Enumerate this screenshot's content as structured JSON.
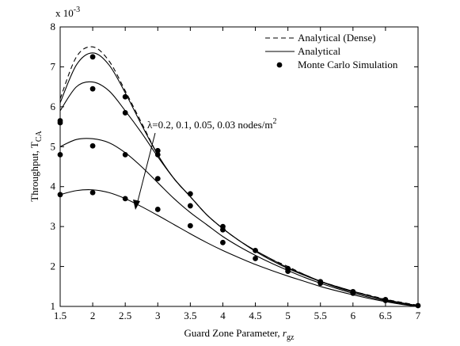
{
  "chart_data": {
    "type": "line",
    "title": "",
    "xlabel": "Guard Zone Parameter, ",
    "xlabel_var": "r",
    "xlabel_sub": "gz",
    "ylabel": "Throughput, T",
    "ylabel_sub": "CA",
    "exponent_label": "x 10",
    "exponent_power": "-3",
    "xlim": [
      1.5,
      7
    ],
    "ylim": [
      1,
      8
    ],
    "xticks": [
      1.5,
      2,
      2.5,
      3,
      3.5,
      4,
      4.5,
      5,
      5.5,
      6,
      6.5,
      7
    ],
    "yticks": [
      1,
      2,
      3,
      4,
      5,
      6,
      7,
      8
    ],
    "grid": false,
    "legend_position": "top-right",
    "legend": [
      {
        "label": "Analytical (Dense)",
        "style": "dashed"
      },
      {
        "label": "Analytical",
        "style": "solid"
      },
      {
        "label": "Monte Carlo Simulation",
        "style": "marker"
      }
    ],
    "annotation": {
      "text": "λ=0.2, 0.1, 0.05, 0.03 nodes/m",
      "sup": "2"
    },
    "x": [
      1.5,
      1.75,
      2,
      2.25,
      2.5,
      2.75,
      3,
      3.25,
      3.5,
      3.75,
      4,
      4.25,
      4.5,
      4.75,
      5,
      5.25,
      5.5,
      5.75,
      6,
      6.25,
      6.5,
      6.75,
      7
    ],
    "dense_series": {
      "name": "Analytical (Dense)",
      "values": [
        6.2,
        7.25,
        7.5,
        7.15,
        6.4,
        5.6,
        4.8,
        4.2,
        3.75,
        3.3,
        2.95,
        2.65,
        2.4,
        2.18,
        2.0,
        1.8,
        1.63,
        1.5,
        1.38,
        1.28,
        1.18,
        1.1,
        1.03
      ]
    },
    "series": [
      {
        "name": "λ=0.2",
        "values": [
          6.1,
          7.05,
          7.35,
          7.05,
          6.35,
          5.55,
          4.8,
          4.2,
          3.75,
          3.3,
          2.95,
          2.65,
          2.4,
          2.18,
          1.97,
          1.8,
          1.63,
          1.5,
          1.38,
          1.27,
          1.17,
          1.09,
          1.02
        ]
      },
      {
        "name": "λ=0.1",
        "values": [
          5.9,
          6.5,
          6.62,
          6.4,
          5.9,
          5.35,
          4.75,
          4.2,
          3.75,
          3.3,
          2.95,
          2.65,
          2.38,
          2.15,
          1.95,
          1.78,
          1.62,
          1.48,
          1.36,
          1.26,
          1.16,
          1.08,
          1.02
        ]
      },
      {
        "name": "λ=0.05",
        "values": [
          5.0,
          5.18,
          5.2,
          5.1,
          4.85,
          4.5,
          4.1,
          3.7,
          3.35,
          3.05,
          2.75,
          2.5,
          2.28,
          2.08,
          1.9,
          1.73,
          1.58,
          1.45,
          1.33,
          1.23,
          1.14,
          1.07,
          1.01
        ]
      },
      {
        "name": "λ=0.03",
        "values": [
          3.8,
          3.9,
          3.92,
          3.85,
          3.7,
          3.5,
          3.28,
          3.05,
          2.82,
          2.6,
          2.4,
          2.22,
          2.05,
          1.9,
          1.76,
          1.63,
          1.5,
          1.39,
          1.29,
          1.2,
          1.12,
          1.05,
          1.0
        ]
      }
    ],
    "monte_carlo": {
      "name": "Monte Carlo Simulation",
      "x": [
        1.5,
        1.5,
        1.5,
        1.5,
        2,
        2,
        2,
        2,
        2.5,
        2.5,
        2.5,
        2.5,
        3,
        3,
        3,
        3,
        3.5,
        3.5,
        3.5,
        4,
        4,
        4,
        4.5,
        4.5,
        5,
        5,
        5.5,
        5.5,
        6,
        6,
        6.5,
        6.5,
        7
      ],
      "y": [
        5.65,
        5.6,
        4.8,
        3.8,
        7.25,
        6.45,
        5.02,
        3.85,
        6.25,
        5.85,
        4.8,
        3.7,
        4.9,
        4.8,
        4.2,
        3.43,
        3.82,
        3.52,
        3.02,
        3.0,
        2.92,
        2.6,
        2.4,
        2.2,
        1.95,
        1.88,
        1.62,
        1.58,
        1.37,
        1.33,
        1.17,
        1.15,
        1.02
      ]
    }
  }
}
